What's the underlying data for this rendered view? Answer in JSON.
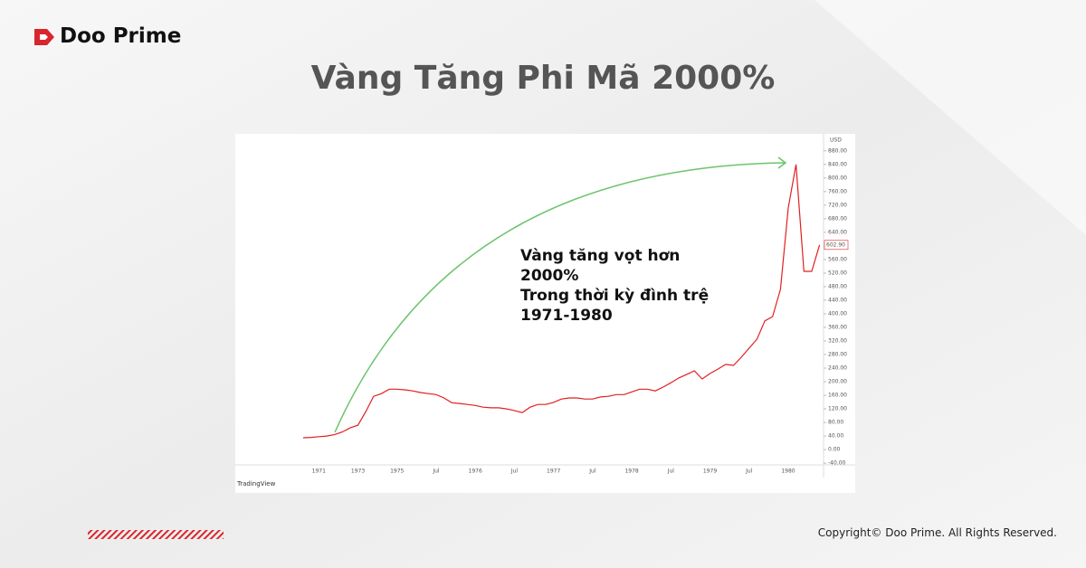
{
  "brand": "Doo Prime",
  "title": "Vàng Tăng Phi Mã 2000%",
  "copyright": "Copyright© Doo Prime. All Rights Reserved.",
  "chart_data": {
    "type": "line",
    "y_axis_label": "USD",
    "source": "TradingView",
    "annotation": [
      "Vàng tăng vọt hơn",
      "2000%",
      "Trong thời kỳ đình trệ",
      "1971-1980"
    ],
    "categories": [
      null,
      null,
      "1971",
      null,
      null,
      null,
      null,
      "1973",
      null,
      null,
      null,
      null,
      "1975",
      null,
      null,
      null,
      null,
      "Jul",
      null,
      null,
      null,
      null,
      "1976",
      null,
      null,
      null,
      null,
      "Jul",
      null,
      null,
      null,
      null,
      "1977",
      null,
      null,
      null,
      null,
      "Jul",
      null,
      null,
      null,
      null,
      "1978",
      null,
      null,
      null,
      null,
      "Jul",
      null,
      null,
      null,
      null,
      "1979",
      null,
      null,
      null,
      null,
      "Jul",
      null,
      null,
      null,
      null,
      "1980",
      null,
      null,
      null,
      null
    ],
    "color": "#e02020",
    "values": [
      35,
      36,
      38,
      40,
      44,
      52,
      64,
      72,
      112,
      157,
      165,
      178,
      178,
      176,
      173,
      168,
      165,
      162,
      152,
      138,
      136,
      133,
      130,
      125,
      123,
      123,
      120,
      115,
      109,
      125,
      133,
      133,
      139,
      149,
      152,
      152,
      149,
      149,
      155,
      157,
      162,
      162,
      170,
      178,
      178,
      173,
      184,
      197,
      211,
      221,
      232,
      208,
      224,
      237,
      251,
      248,
      272,
      299,
      325,
      379,
      392,
      472,
      712,
      840,
      525,
      525,
      602.9
    ],
    "value_labels": [
      null,
      null,
      null,
      null,
      null,
      null,
      null,
      null,
      null,
      null,
      null,
      null,
      null,
      null,
      null,
      null,
      null,
      null,
      null,
      null,
      null,
      null,
      null,
      null,
      null,
      null,
      null,
      null,
      null,
      null,
      null,
      null,
      null,
      null,
      null,
      null,
      null,
      null,
      null,
      null,
      null,
      null,
      null,
      null,
      null,
      null,
      null,
      null,
      null,
      null,
      null,
      null,
      null,
      null,
      null,
      null,
      null,
      null,
      null,
      null,
      null,
      null,
      null,
      null,
      null,
      null,
      "602.90"
    ],
    "ylim": [
      -45,
      930
    ],
    "yticks": [
      {
        "value": -40,
        "label": "-40.00"
      },
      {
        "value": 0,
        "label": "0.00"
      },
      {
        "value": 40,
        "label": "40.00"
      },
      {
        "value": 80,
        "label": "80.00"
      },
      {
        "value": 120,
        "label": "120.00"
      },
      {
        "value": 160,
        "label": "160.00"
      },
      {
        "value": 200,
        "label": "200.00"
      },
      {
        "value": 240,
        "label": "240.00"
      },
      {
        "value": 280,
        "label": "280.00"
      },
      {
        "value": 320,
        "label": "320.00"
      },
      {
        "value": 360,
        "label": "360.00"
      },
      {
        "value": 400,
        "label": "400.00"
      },
      {
        "value": 440,
        "label": "440.00"
      },
      {
        "value": 480,
        "label": "480.00"
      },
      {
        "value": 520,
        "label": "520.00"
      },
      {
        "value": 560,
        "label": "560.00"
      },
      {
        "value": 600,
        "label": "600.00"
      },
      {
        "value": 640,
        "label": "640.00"
      },
      {
        "value": 680,
        "label": "680.00"
      },
      {
        "value": 720,
        "label": "720.00"
      },
      {
        "value": 760,
        "label": "760.00"
      },
      {
        "value": 800,
        "label": "800.00"
      },
      {
        "value": 840,
        "label": "840.00"
      },
      {
        "value": 880,
        "label": "880.00"
      }
    ],
    "grid": false
  }
}
